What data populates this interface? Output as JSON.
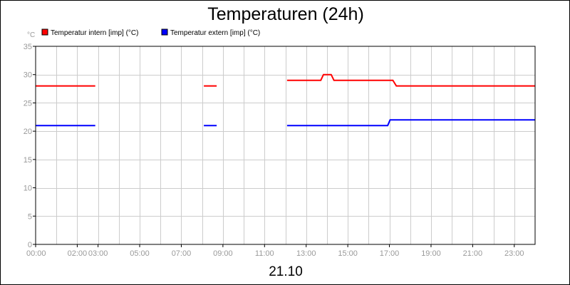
{
  "chart_data": {
    "type": "line",
    "title": "Temperaturen (24h)",
    "y_unit": "°C",
    "ylim": [
      0,
      35
    ],
    "y_ticks": [
      0,
      5,
      10,
      15,
      20,
      25,
      30,
      35
    ],
    "xlim": [
      "00:00",
      "24:00"
    ],
    "x_ticks": [
      "00:00",
      "02:00",
      "03:00",
      "05:00",
      "07:00",
      "09:00",
      "11:00",
      "13:00",
      "15:00",
      "17:00",
      "19:00",
      "21:00",
      "23:00"
    ],
    "date_label": "21.10",
    "grid": true,
    "legend_position": "top-left",
    "series": [
      {
        "name": "Temperatur intern [imp] (°C)",
        "color": "#ff0000",
        "segments": [
          [
            [
              "00:00",
              28
            ],
            [
              "02:52",
              28
            ]
          ],
          [
            [
              "08:05",
              28
            ],
            [
              "08:42",
              28
            ]
          ],
          [
            [
              "12:05",
              29
            ],
            [
              "13:42",
              29
            ],
            [
              "13:50",
              30
            ],
            [
              "14:12",
              30
            ],
            [
              "14:20",
              29
            ],
            [
              "17:10",
              29
            ],
            [
              "17:20",
              28
            ],
            [
              "24:00",
              28
            ]
          ]
        ]
      },
      {
        "name": "Temperatur extern [imp] (°C)",
        "color": "#0000ff",
        "segments": [
          [
            [
              "00:00",
              21
            ],
            [
              "02:52",
              21
            ]
          ],
          [
            [
              "08:05",
              21
            ],
            [
              "08:42",
              21
            ]
          ],
          [
            [
              "12:05",
              21
            ],
            [
              "16:55",
              21
            ],
            [
              "17:02",
              22
            ],
            [
              "24:00",
              22
            ]
          ]
        ]
      }
    ]
  }
}
